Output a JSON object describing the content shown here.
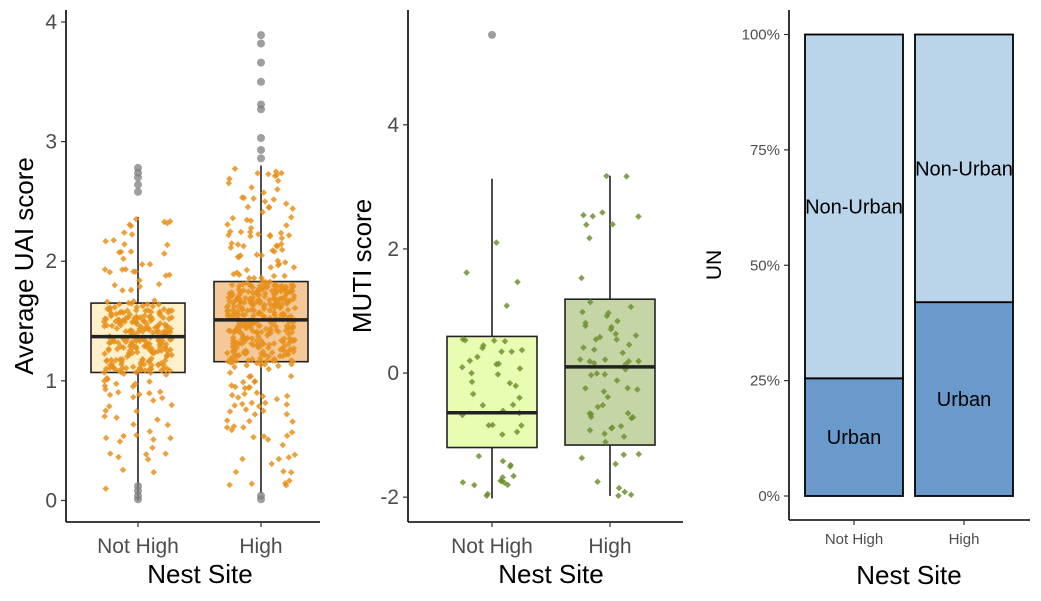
{
  "chart_data": [
    {
      "type": "boxplot",
      "xlabel": "Nest Site",
      "ylabel": "Average UAI score",
      "ylim": [
        -0.18,
        4.1
      ],
      "yticks": [
        "0",
        "1",
        "2",
        "3",
        "4"
      ],
      "categories": [
        "Not High",
        "High"
      ],
      "fill_colors": [
        "#FFF0CC",
        "#F3C99A"
      ],
      "point_color": "#E8901C",
      "outlier_color": "#7f7f7f",
      "boxes": [
        {
          "q1": 1.07,
          "median": 1.37,
          "q3": 1.65,
          "whisker_low": 0.0,
          "whisker_high": 2.37,
          "n_points": 300,
          "outliers": [
            2.78,
            2.74,
            2.7,
            2.64,
            2.58,
            0.12,
            0.08,
            0.04,
            0.01
          ]
        },
        {
          "q1": 1.16,
          "median": 1.51,
          "q3": 1.83,
          "whisker_low": 0.06,
          "whisker_high": 2.8,
          "n_points": 450,
          "outliers": [
            3.89,
            3.82,
            3.66,
            3.5,
            3.31,
            3.27,
            3.03,
            2.93,
            2.86,
            0.04,
            0.01
          ]
        }
      ]
    },
    {
      "type": "boxplot",
      "xlabel": "Nest Site",
      "ylabel": "MUTI score",
      "ylim": [
        -2.4,
        5.85
      ],
      "yticks": [
        "-2",
        "0",
        "2",
        "4"
      ],
      "categories": [
        "Not High",
        "High"
      ],
      "fill_colors": [
        "#E9FDB2",
        "#C5D5A6"
      ],
      "point_color": "#6E9130",
      "outlier_color": "#7f7f7f",
      "boxes": [
        {
          "q1": -1.2,
          "median": -0.64,
          "q3": 0.59,
          "whisker_low": -2.02,
          "whisker_high": 3.13,
          "n_points": 50,
          "outliers": [
            5.45
          ]
        },
        {
          "q1": -1.16,
          "median": 0.1,
          "q3": 1.19,
          "whisker_low": -1.98,
          "whisker_high": 3.18,
          "n_points": 70,
          "outliers": []
        }
      ]
    },
    {
      "type": "stacked_bar",
      "xlabel": "Nest Site",
      "ylabel": "UN",
      "ylim": [
        0,
        100
      ],
      "yticks": [
        "0%",
        "25%",
        "50%",
        "75%",
        "100%"
      ],
      "categories": [
        "Not High",
        "High"
      ],
      "series": [
        {
          "name": "Urban",
          "values": [
            25.5,
            42
          ],
          "color": "#6A9ACB"
        },
        {
          "name": "Non-Urban",
          "values": [
            74.5,
            58
          ],
          "color": "#BAD4EA"
        }
      ]
    }
  ]
}
